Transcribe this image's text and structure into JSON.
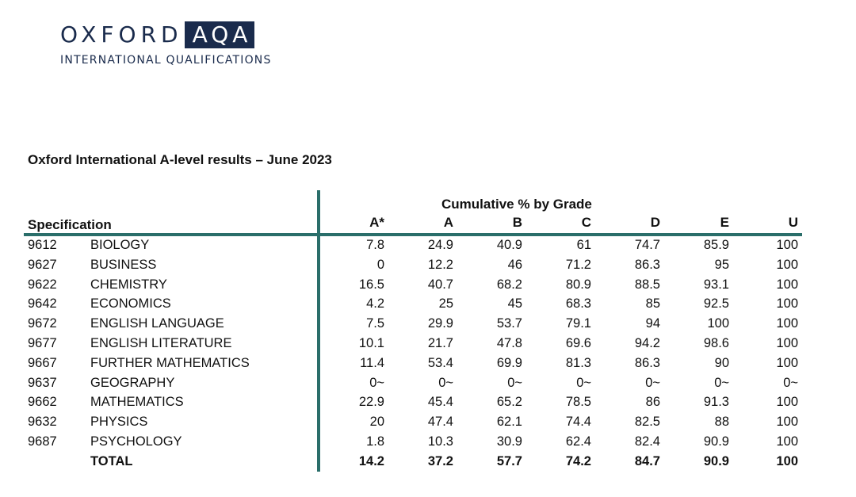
{
  "logo": {
    "oxford": "OXFORD",
    "aqa": "AQA",
    "subtitle": "INTERNATIONAL QUALIFICATIONS"
  },
  "title": "Oxford International A-level results – June 2023",
  "table": {
    "group_header": "Cumulative % by Grade",
    "spec_header": "Specification",
    "grades": [
      "A*",
      "A",
      "B",
      "C",
      "D",
      "E",
      "U"
    ],
    "rows": [
      {
        "code": "9612",
        "name": "BIOLOGY",
        "values": [
          "7.8",
          "24.9",
          "40.9",
          "61",
          "74.7",
          "85.9",
          "100"
        ]
      },
      {
        "code": "9627",
        "name": "BUSINESS",
        "values": [
          "0",
          "12.2",
          "46",
          "71.2",
          "86.3",
          "95",
          "100"
        ]
      },
      {
        "code": "9622",
        "name": "CHEMISTRY",
        "values": [
          "16.5",
          "40.7",
          "68.2",
          "80.9",
          "88.5",
          "93.1",
          "100"
        ]
      },
      {
        "code": "9642",
        "name": "ECONOMICS",
        "values": [
          "4.2",
          "25",
          "45",
          "68.3",
          "85",
          "92.5",
          "100"
        ]
      },
      {
        "code": "9672",
        "name": "ENGLISH LANGUAGE",
        "values": [
          "7.5",
          "29.9",
          "53.7",
          "79.1",
          "94",
          "100",
          "100"
        ]
      },
      {
        "code": "9677",
        "name": "ENGLISH LITERATURE",
        "values": [
          "10.1",
          "21.7",
          "47.8",
          "69.6",
          "94.2",
          "98.6",
          "100"
        ]
      },
      {
        "code": "9667",
        "name": "FURTHER MATHEMATICS",
        "values": [
          "11.4",
          "53.4",
          "69.9",
          "81.3",
          "86.3",
          "90",
          "100"
        ]
      },
      {
        "code": "9637",
        "name": "GEOGRAPHY",
        "values": [
          "0~",
          "0~",
          "0~",
          "0~",
          "0~",
          "0~",
          "0~"
        ]
      },
      {
        "code": "9662",
        "name": "MATHEMATICS",
        "values": [
          "22.9",
          "45.4",
          "65.2",
          "78.5",
          "86",
          "91.3",
          "100"
        ]
      },
      {
        "code": "9632",
        "name": "PHYSICS",
        "values": [
          "20",
          "47.4",
          "62.1",
          "74.4",
          "82.5",
          "88",
          "100"
        ]
      },
      {
        "code": "9687",
        "name": "PSYCHOLOGY",
        "values": [
          "1.8",
          "10.3",
          "30.9",
          "62.4",
          "82.4",
          "90.9",
          "100"
        ]
      }
    ],
    "total": {
      "code": "",
      "name": "TOTAL",
      "values": [
        "14.2",
        "37.2",
        "57.7",
        "74.2",
        "84.7",
        "90.9",
        "100"
      ]
    }
  }
}
